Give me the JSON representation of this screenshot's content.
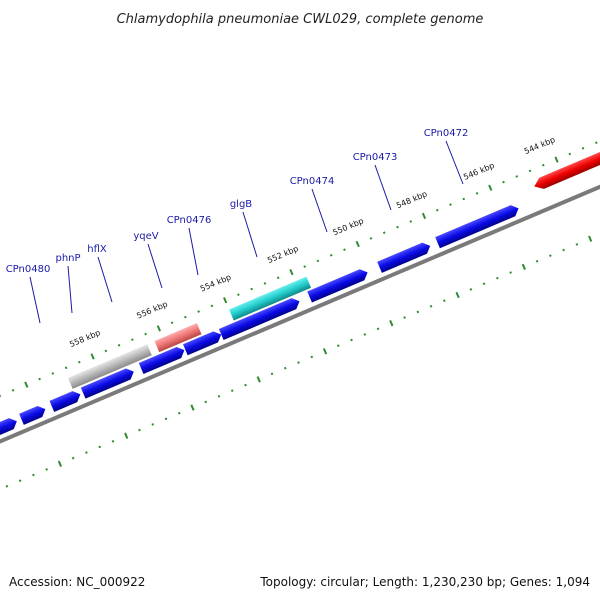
{
  "title": "Chlamydophila pneumoniae CWL029, complete genome",
  "footer": {
    "accession": "Accession: NC_000922",
    "summary": "Topology: circular; Length: 1,230,230 bp; Genes: 1,094"
  },
  "ticks": [
    {
      "label": "544 kbp"
    },
    {
      "label": "546 kbp"
    },
    {
      "label": "548 kbp"
    },
    {
      "label": "550 kbp"
    },
    {
      "label": "552 kbp"
    },
    {
      "label": "554 kbp"
    },
    {
      "label": "556 kbp"
    },
    {
      "label": "558 kbp"
    }
  ],
  "gene_labels": [
    {
      "name": "CPn0472"
    },
    {
      "name": "CPn0473"
    },
    {
      "name": "CPn0474"
    },
    {
      "name": "glgB"
    },
    {
      "name": "CPn0476"
    },
    {
      "name": "yqeV"
    },
    {
      "name": "hflX"
    },
    {
      "name": "phnP"
    },
    {
      "name": "CPn0480"
    }
  ],
  "colors": {
    "forward_cds": "#0a0ae6",
    "reverse_cds": "#ee0000",
    "rrna": "#22cccc",
    "trna": "#ee7777",
    "other": "#b8b8b8",
    "backbone": "#7a7a7a",
    "tick": "#2e8b2e"
  }
}
